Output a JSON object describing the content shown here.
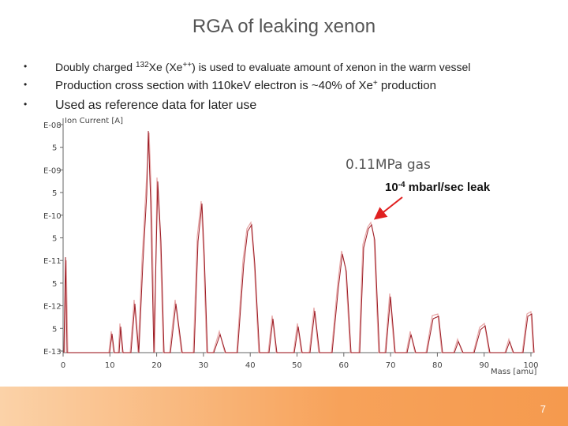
{
  "slide": {
    "title": "RGA of leaking xenon",
    "bullets": [
      {
        "parts": [
          "Doubly charged ",
          {
            "sup": "132"
          },
          "Xe (Xe",
          {
            "sup": "++"
          },
          ") is used to evaluate amount of xenon in the warm vessel"
        ]
      },
      {
        "parts": [
          "Production cross section with 110keV ",
          "electron is ~40% of Xe",
          {
            "sup": "+"
          },
          " production"
        ]
      },
      {
        "parts": [
          "Used as reference data for later use"
        ]
      }
    ],
    "figure": {
      "y_axis_label": "Ion Current [A]",
      "y_tick_labels": [
        "E-08",
        "5",
        "E-09",
        "5",
        "E-10",
        "5",
        "E-11",
        "5",
        "E-12",
        "5",
        "E-13"
      ],
      "x_axis_label": "Mass [amu]",
      "x_tick_labels": [
        "0",
        "10",
        "20",
        "30",
        "40",
        "50",
        "60",
        "70",
        "80",
        "90",
        "100"
      ],
      "inset_label": "0.11MPa gas",
      "annotation": {
        "parts": [
          "10",
          {
            "sup": "-4"
          },
          " mbarl/sec leak"
        ]
      }
    },
    "page_number": "7"
  }
}
